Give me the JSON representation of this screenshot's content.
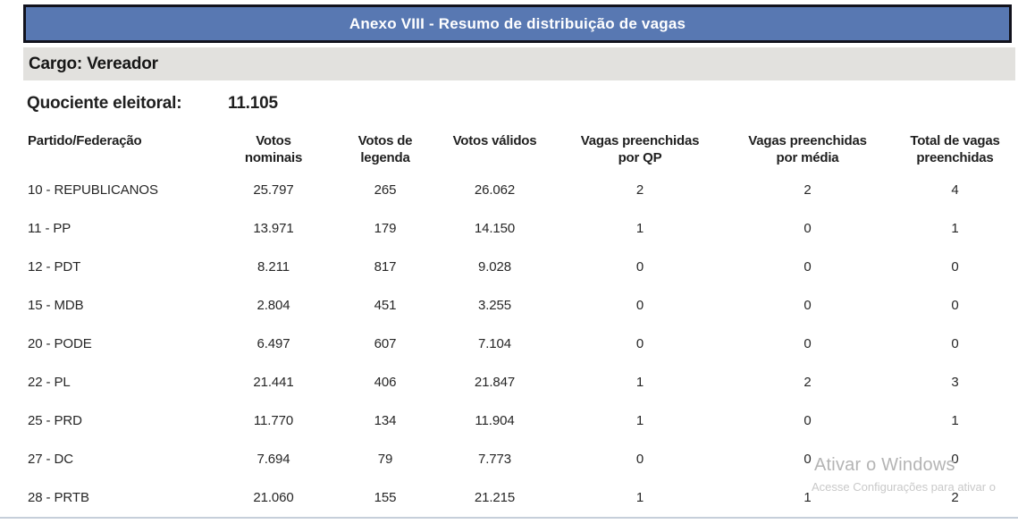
{
  "header": {
    "title": "Anexo VIII - Resumo de distribuição de vagas"
  },
  "cargo": {
    "label": "Cargo: Vereador"
  },
  "quociente": {
    "label": "Quociente eleitoral:",
    "value": "11.105"
  },
  "table": {
    "columns": [
      {
        "id": "partido",
        "lines": [
          "Partido/Federação"
        ]
      },
      {
        "id": "votos-nominais",
        "lines": [
          "Votos",
          "nominais"
        ]
      },
      {
        "id": "votos-legenda",
        "lines": [
          "Votos de",
          "legenda"
        ]
      },
      {
        "id": "votos-validos",
        "lines": [
          "Votos válidos"
        ]
      },
      {
        "id": "vagas-qp",
        "lines": [
          "Vagas preenchidas",
          "por QP"
        ]
      },
      {
        "id": "vagas-media",
        "lines": [
          "Vagas preenchidas",
          "por média"
        ]
      },
      {
        "id": "total-vagas",
        "lines": [
          "Total de vagas",
          "preenchidas"
        ]
      }
    ],
    "rows": [
      [
        "10 - REPUBLICANOS",
        "25.797",
        "265",
        "26.062",
        "2",
        "2",
        "4"
      ],
      [
        "11 - PP",
        "13.971",
        "179",
        "14.150",
        "1",
        "0",
        "1"
      ],
      [
        "12 - PDT",
        "8.211",
        "817",
        "9.028",
        "0",
        "0",
        "0"
      ],
      [
        "15 - MDB",
        "2.804",
        "451",
        "3.255",
        "0",
        "0",
        "0"
      ],
      [
        "20 - PODE",
        "6.497",
        "607",
        "7.104",
        "0",
        "0",
        "0"
      ],
      [
        "22 - PL",
        "21.441",
        "406",
        "21.847",
        "1",
        "2",
        "3"
      ],
      [
        "25 - PRD",
        "11.770",
        "134",
        "11.904",
        "1",
        "0",
        "1"
      ],
      [
        "27 - DC",
        "7.694",
        "79",
        "7.773",
        "0",
        "0",
        "0"
      ],
      [
        "28 - PRTB",
        "21.060",
        "155",
        "21.215",
        "1",
        "1",
        "2"
      ]
    ]
  },
  "watermark": {
    "line1": "Ativar o Windows",
    "line2": "Acesse Configurações para ativar o"
  },
  "colors": {
    "header_blue": "#5878b2",
    "header_border": "#11121c",
    "cargo_gray": "#e2e1de",
    "text": "#1f1f1f",
    "watermark_primary": "#b4b4b4",
    "watermark_secondary": "#c9c9c9",
    "bottom_line": "#c6cfda"
  }
}
